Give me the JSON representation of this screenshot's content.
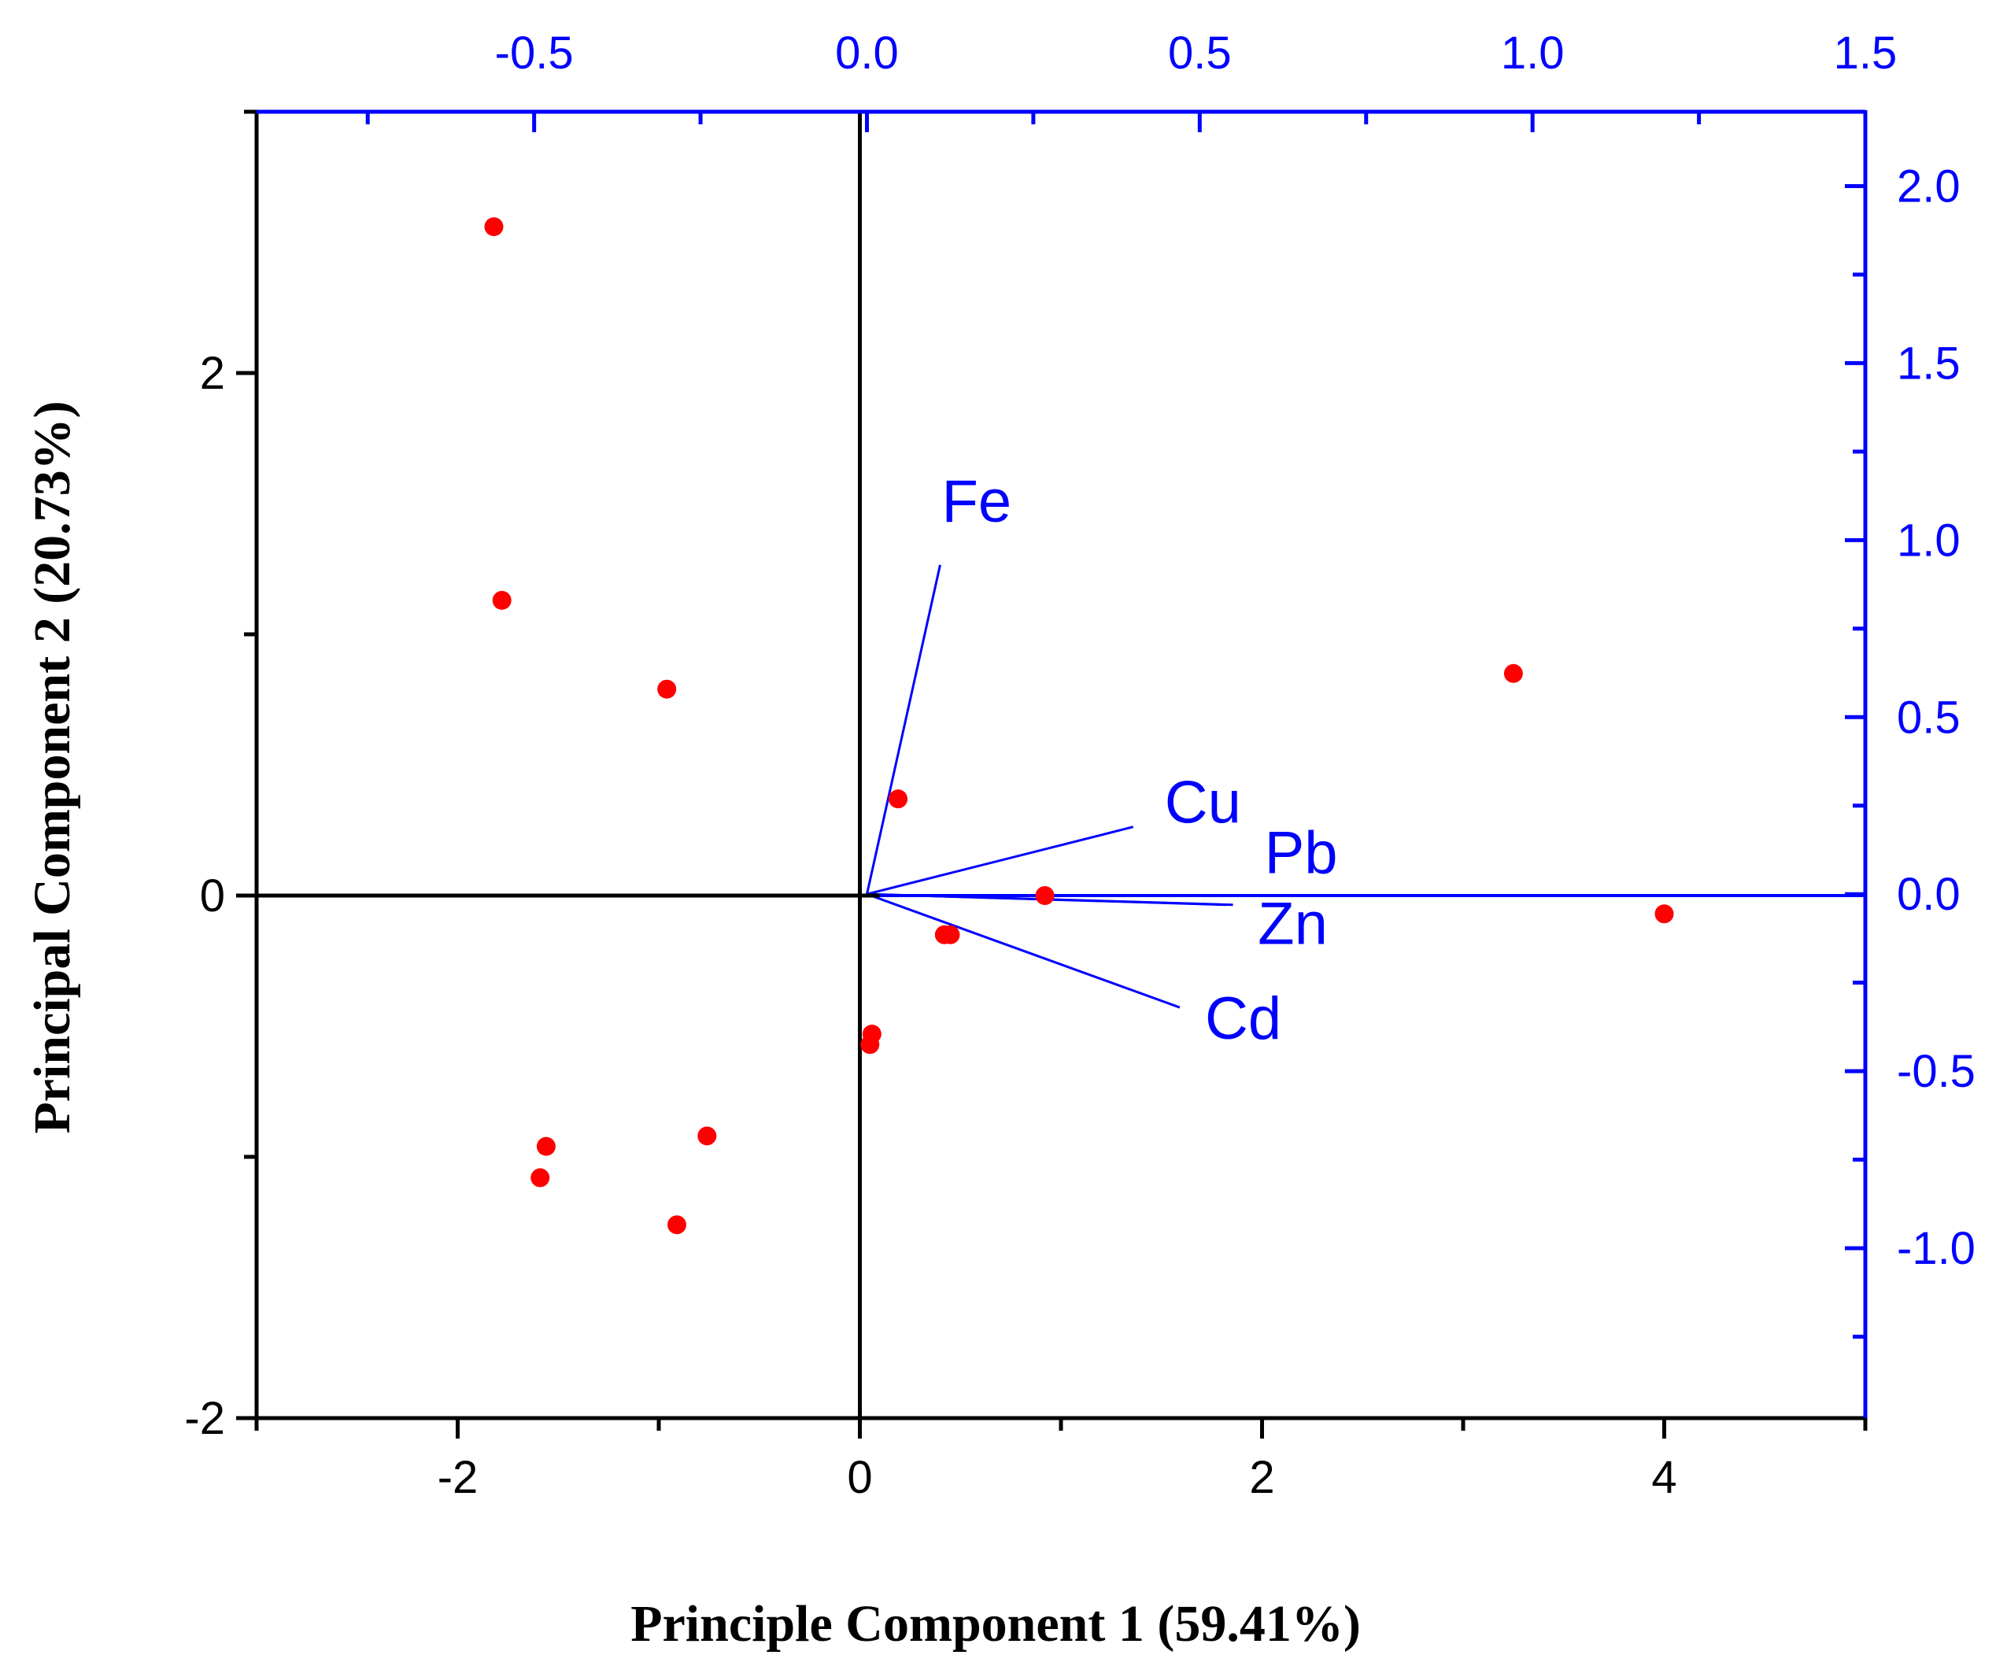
{
  "chart_data": {
    "type": "scatter",
    "subtype": "pca-biplot",
    "xlabel": "Principle Component 1 (59.41%)",
    "ylabel": "Principal Component 2 (20.73%)",
    "title": "",
    "grid": false,
    "colors": {
      "points": "#ff0000",
      "loadings": "#0000ff",
      "primary_axes": "#000000",
      "secondary_axes": "#0000ff"
    },
    "primary_axes": {
      "xlim": [
        -3,
        5
      ],
      "ylim": [
        -2,
        3
      ],
      "xticks": [
        -2,
        0,
        2,
        4
      ],
      "xtick_labels": [
        "-2",
        "0",
        "2",
        "4"
      ],
      "yticks": [
        -2,
        0,
        2
      ],
      "ytick_labels": [
        "-2",
        "0",
        "2"
      ]
    },
    "secondary_axes": {
      "xlim": [
        -0.917,
        1.5
      ],
      "ylim": [
        -1.48,
        2.21
      ],
      "xticks": [
        -0.5,
        0.0,
        0.5,
        1.0,
        1.5
      ],
      "xtick_labels": [
        "-0.5",
        "0.0",
        "0.5",
        "1.0",
        "1.5"
      ],
      "yticks": [
        -1.0,
        -0.5,
        0.0,
        0.5,
        1.0,
        1.5,
        2.0
      ],
      "ytick_labels": [
        "-1.0",
        "-0.5",
        "0.0",
        "0.5",
        "1.0",
        "1.5",
        "2.0"
      ]
    },
    "scores": {
      "name": "Samples",
      "points": [
        {
          "x": -1.82,
          "y": 2.56
        },
        {
          "x": -1.78,
          "y": 1.13
        },
        {
          "x": -0.96,
          "y": 0.79
        },
        {
          "x": 0.19,
          "y": 0.37
        },
        {
          "x": 3.25,
          "y": 0.85
        },
        {
          "x": 0.92,
          "y": 0.0
        },
        {
          "x": 4.0,
          "y": -0.07
        },
        {
          "x": 0.42,
          "y": -0.15
        },
        {
          "x": 0.45,
          "y": -0.15
        },
        {
          "x": 0.06,
          "y": -0.53
        },
        {
          "x": 0.05,
          "y": -0.57
        },
        {
          "x": -0.76,
          "y": -0.92
        },
        {
          "x": -1.56,
          "y": -0.96
        },
        {
          "x": -1.59,
          "y": -1.08
        },
        {
          "x": -0.91,
          "y": -1.26
        }
      ]
    },
    "loadings": [
      {
        "label": "Fe",
        "x": 0.11,
        "y": 0.93
      },
      {
        "label": "Cu",
        "x": 0.4,
        "y": 0.19
      },
      {
        "label": "Pb",
        "x": 0.55,
        "y": -0.03
      },
      {
        "label": "Zn",
        "x": 0.54,
        "y": -0.03
      },
      {
        "label": "Cd",
        "x": 0.47,
        "y": -0.32
      }
    ]
  }
}
